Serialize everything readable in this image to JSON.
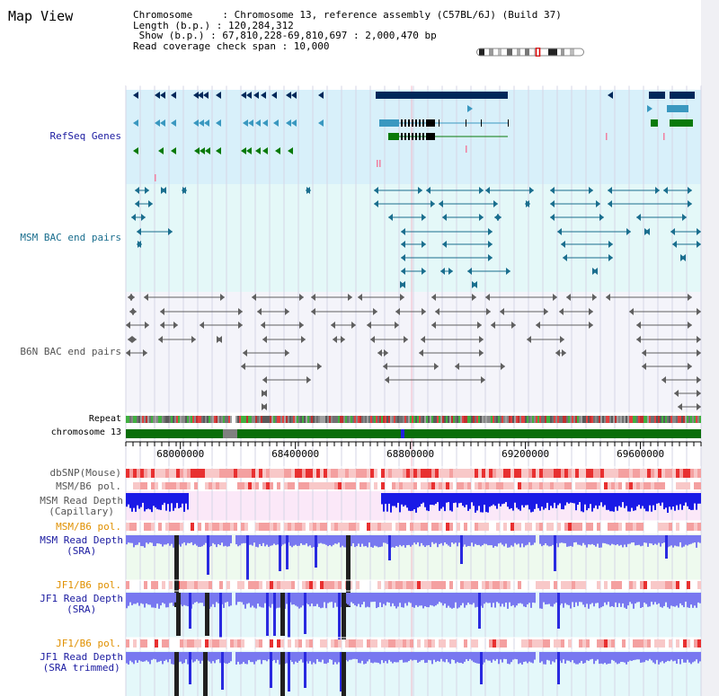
{
  "title": "Map View",
  "info": {
    "lines": [
      "Chromosome     : Chromosome 13, reference assembly (C57BL/6J) (Build 37)",
      "Length (b.p.) : 120,284,312",
      " Show (b.p.) : 67,810,228-69,810,697 : 2,000,470 bp",
      "Read coverage check span : 10,000"
    ]
  },
  "tracks": {
    "refseq": "RefSeq Genes",
    "msm_bac": "MSM BAC end pairs",
    "b6n_bac": "B6N BAC end pairs",
    "repeat": "Repeat",
    "chromosome": "chromosome 13",
    "dbsnp": "dbSNP(Mouse)",
    "msm_b6_pol_1": "MSM/B6 pol.",
    "msm_cap_1": "MSM Read Depth",
    "msm_cap_2": "(Capillary)",
    "msm_b6_pol_2": "MSM/B6 pol.",
    "msm_sra_1": "MSM Read Depth",
    "msm_sra_2": "(SRA)",
    "jf1_b6_pol_1": "JF1/B6 pol.",
    "jf1_sra_1": "JF1 Read Depth",
    "jf1_sra_2": "(SRA)",
    "jf1_b6_pol_2": "JF1/B6 pol.",
    "jf1_tr_1": "JF1 Read Depth",
    "jf1_tr_2": "(SRA trimmed)"
  },
  "axis": {
    "ticks": [
      "68000000",
      "68400000",
      "68800000",
      "69200000",
      "69600000"
    ],
    "tick_values": [
      68000000,
      68400000,
      68800000,
      69200000,
      69600000
    ],
    "range": [
      67810228,
      69810697
    ]
  },
  "colors": {
    "refseq_bg": "#d8f0fa",
    "bac_bg": "#e4f8f8",
    "b6n_bg": "#f4f4fa",
    "gene_dark": "#00285a",
    "gene_teal": "#3a98c0",
    "gene_green": "#0a7a0a",
    "msm_bac": "#1a6e8e",
    "b6n_bac": "#606060",
    "chrom": "#0a6e0a",
    "snp": "#f08080",
    "capillary": "#1a1ae6",
    "sra": "#7878f0",
    "label_blue": "#1a1aa0",
    "label_orange": "#e09000"
  }
}
